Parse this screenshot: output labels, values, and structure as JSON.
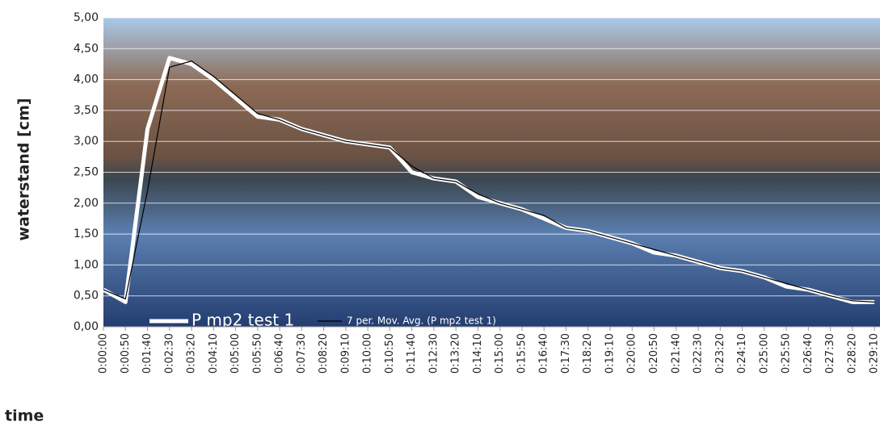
{
  "chart_data": {
    "type": "line",
    "y_label": "waterstand [cm]",
    "x_label": "time",
    "categories": [
      "0:00:00",
      "0:00:50",
      "0:01:40",
      "0:02:30",
      "0:03:20",
      "0:04:10",
      "0:05:00",
      "0:05:50",
      "0:06:40",
      "0:07:30",
      "0:08:20",
      "0:09:10",
      "0:10:00",
      "0:10:50",
      "0:11:40",
      "0:12:30",
      "0:13:20",
      "0:14:10",
      "0:15:00",
      "0:15:50",
      "0:16:40",
      "0:17:30",
      "0:18:20",
      "0:19:10",
      "0:20:00",
      "0:20:50",
      "0:21:40",
      "0:22:30",
      "0:23:20",
      "0:24:10",
      "0:25:00",
      "0:25:50",
      "0:26:40",
      "0:27:30",
      "0:28:20",
      "0:29:10"
    ],
    "series": [
      {
        "name": "P mp2 test 1",
        "color": "#ffffff",
        "values": [
          0.6,
          0.4,
          3.2,
          4.35,
          4.25,
          4.0,
          3.7,
          3.4,
          3.35,
          3.2,
          3.1,
          3.0,
          2.95,
          2.9,
          2.5,
          2.4,
          2.35,
          2.1,
          2.0,
          1.9,
          1.75,
          1.6,
          1.55,
          1.45,
          1.35,
          1.2,
          1.15,
          1.05,
          0.95,
          0.9,
          0.8,
          0.65,
          0.6,
          0.5,
          0.4,
          0.4
        ]
      },
      {
        "name": "7 per. Mov. Avg. (P mp2 test 1)",
        "color": "#000000",
        "values": [
          0.6,
          0.45,
          2.2,
          4.2,
          4.3,
          4.05,
          3.75,
          3.45,
          3.35,
          3.2,
          3.1,
          3.0,
          2.95,
          2.9,
          2.6,
          2.4,
          2.35,
          2.15,
          2.0,
          1.9,
          1.8,
          1.6,
          1.55,
          1.45,
          1.35,
          1.25,
          1.15,
          1.05,
          0.95,
          0.9,
          0.8,
          0.7,
          0.6,
          0.5,
          0.42,
          0.4
        ]
      }
    ],
    "ylim": [
      0,
      5
    ],
    "yticks": [
      {
        "value": 0,
        "label": "0,00"
      },
      {
        "value": 0.5,
        "label": "0,50"
      },
      {
        "value": 1,
        "label": "1,00"
      },
      {
        "value": 1.5,
        "label": "1,50"
      },
      {
        "value": 2,
        "label": "2,00"
      },
      {
        "value": 2.5,
        "label": "2,50"
      },
      {
        "value": 3,
        "label": "3,00"
      },
      {
        "value": 3.5,
        "label": "3,50"
      },
      {
        "value": 4,
        "label": "4,00"
      },
      {
        "value": 4.5,
        "label": "4,50"
      },
      {
        "value": 5,
        "label": "5,00"
      }
    ],
    "grid": true,
    "legend": "bottom-left"
  }
}
